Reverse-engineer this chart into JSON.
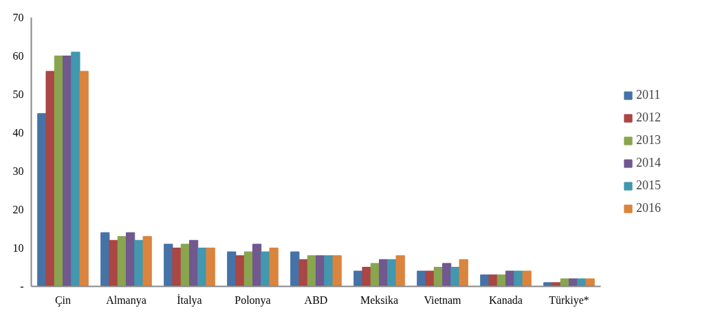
{
  "chart_data": {
    "type": "bar",
    "categories": [
      "Çin",
      "Almanya",
      "İtalya",
      "Polonya",
      "ABD",
      "Meksika",
      "Vietnam",
      "Kanada",
      "Türkiye*"
    ],
    "series": [
      {
        "name": "2011",
        "color": "#4572a7",
        "values": [
          45,
          14,
          11,
          9,
          9,
          4,
          4,
          3,
          1
        ]
      },
      {
        "name": "2012",
        "color": "#aa4643",
        "values": [
          56,
          12,
          10,
          8,
          7,
          5,
          4,
          3,
          1
        ]
      },
      {
        "name": "2013",
        "color": "#89a54e",
        "values": [
          60,
          13,
          11,
          9,
          8,
          6,
          5,
          3,
          2
        ]
      },
      {
        "name": "2014",
        "color": "#71588f",
        "values": [
          60,
          14,
          12,
          11,
          8,
          7,
          6,
          4,
          2
        ]
      },
      {
        "name": "2015",
        "color": "#4198af",
        "values": [
          61,
          12,
          10,
          9,
          8,
          7,
          5,
          4,
          2
        ]
      },
      {
        "name": "2016",
        "color": "#db843d",
        "values": [
          56,
          13,
          10,
          10,
          8,
          8,
          7,
          4,
          2
        ]
      }
    ],
    "ylim": [
      0,
      70
    ],
    "yticks": [
      {
        "value": 0,
        "label": "-"
      },
      10,
      20,
      30,
      40,
      50,
      60,
      70
    ],
    "grid": false,
    "legend": "right"
  }
}
